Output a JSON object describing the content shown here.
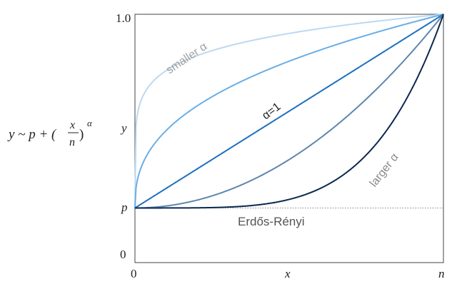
{
  "chart_data": {
    "type": "line",
    "xlabel": "x",
    "ylabel": "y",
    "formula": {
      "lhs": "y ~ p + (",
      "numerator": "x",
      "denominator": "n",
      "rhs": ")",
      "exponent": "α"
    },
    "x_ticks": [
      {
        "label": "0",
        "value": 0
      },
      {
        "label": "n",
        "value": 1
      }
    ],
    "y_ticks": [
      {
        "label": "1.0",
        "value": 1.0
      },
      {
        "label": "p",
        "value": 0.22
      },
      {
        "label": "0",
        "value": 0
      }
    ],
    "xlim": [
      0,
      1
    ],
    "ylim": [
      0,
      1
    ],
    "p": 0.22,
    "grid": false,
    "series": [
      {
        "alpha": 0.15,
        "color": "#bcd9f1"
      },
      {
        "alpha": 0.4,
        "color": "#6aaee6"
      },
      {
        "alpha": 1,
        "color": "#1f6fbf"
      },
      {
        "alpha": 2,
        "color": "#5f86ad"
      },
      {
        "alpha": 4.5,
        "color": "#0b2850"
      }
    ],
    "baseline": {
      "label": "Erdős-Rényi",
      "y": 0.22,
      "color": "#888888"
    },
    "annotations": {
      "smaller": "smaller α",
      "alpha_one": "α=1",
      "larger": "larger α"
    }
  }
}
